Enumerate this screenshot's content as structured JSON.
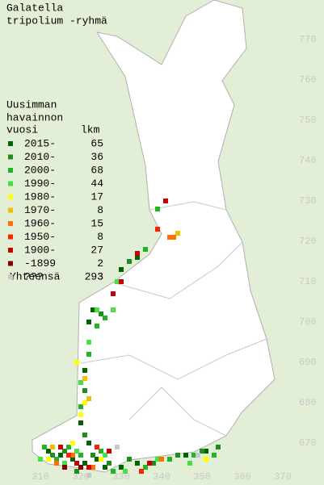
{
  "map": {
    "title": [
      "Galatella",
      "tripolium -ryhmä"
    ],
    "legend_header": [
      "Uusimman",
      "havainnon",
      "vuosi",
      "lkm"
    ],
    "legend": [
      {
        "label": "2015-",
        "count": 65,
        "color": "#006400",
        "squares": [
          [
            312,
            668
          ],
          [
            315,
            667
          ],
          [
            318,
            666
          ],
          [
            321,
            665
          ],
          [
            324,
            666
          ],
          [
            326,
            664
          ],
          [
            330,
            664
          ],
          [
            334,
            665
          ],
          [
            340,
            666
          ],
          [
            346,
            667
          ],
          [
            351,
            668
          ],
          [
            322,
            670
          ],
          [
            320,
            675
          ],
          [
            321,
            688
          ],
          [
            322,
            700
          ],
          [
            323,
            703
          ],
          [
            330,
            713
          ],
          [
            334,
            716
          ]
        ]
      },
      {
        "label": "2010-",
        "count": 36,
        "color": "#1e8c1e",
        "squares": [
          [
            313,
            667
          ],
          [
            316,
            668
          ],
          [
            319,
            663
          ],
          [
            323,
            667
          ],
          [
            327,
            665
          ],
          [
            332,
            666
          ],
          [
            338,
            665
          ],
          [
            344,
            667
          ],
          [
            350,
            668
          ],
          [
            354,
            669
          ],
          [
            321,
            672
          ],
          [
            321,
            683
          ],
          [
            325,
            702
          ],
          [
            332,
            715
          ]
        ]
      },
      {
        "label": "2000-",
        "count": 68,
        "color": "#22b422",
        "squares": [
          [
            311,
            669
          ],
          [
            314,
            666
          ],
          [
            317,
            669
          ],
          [
            320,
            667
          ],
          [
            325,
            668
          ],
          [
            328,
            663
          ],
          [
            336,
            664
          ],
          [
            342,
            666
          ],
          [
            348,
            667
          ],
          [
            353,
            667
          ],
          [
            320,
            679
          ],
          [
            322,
            692
          ],
          [
            324,
            699
          ],
          [
            326,
            701
          ],
          [
            336,
            718
          ],
          [
            339,
            728
          ]
        ]
      },
      {
        "label": "1990-",
        "count": 44,
        "color": "#44e044",
        "squares": [
          [
            310,
            666
          ],
          [
            316,
            665
          ],
          [
            319,
            668
          ],
          [
            326,
            667
          ],
          [
            331,
            663
          ],
          [
            339,
            666
          ],
          [
            347,
            665
          ],
          [
            320,
            685
          ],
          [
            322,
            695
          ],
          [
            324,
            703
          ],
          [
            328,
            703
          ],
          [
            329,
            710
          ]
        ]
      },
      {
        "label": "1980-",
        "count": 17,
        "color": "#ffff00",
        "squares": [
          [
            312,
            666
          ],
          [
            318,
            670
          ],
          [
            320,
            677
          ],
          [
            321,
            680
          ],
          [
            319,
            690
          ],
          [
            325,
            666
          ],
          [
            351,
            666
          ]
        ]
      },
      {
        "label": "1970-",
        "count": 8,
        "color": "#f0c000",
        "squares": [
          [
            313,
            669
          ],
          [
            321,
            686
          ],
          [
            322,
            681
          ],
          [
            344,
            722
          ]
        ]
      },
      {
        "label": "1960-",
        "count": 15,
        "color": "#ff7000",
        "squares": [
          [
            314,
            665
          ],
          [
            318,
            667
          ],
          [
            323,
            664
          ],
          [
            342,
            721
          ],
          [
            343,
            721
          ],
          [
            340,
            666
          ]
        ]
      },
      {
        "label": "1950-",
        "count": 8,
        "color": "#ff2000",
        "squares": [
          [
            317,
            667
          ],
          [
            324,
            669
          ],
          [
            335,
            663
          ],
          [
            339,
            723
          ]
        ]
      },
      {
        "label": "1900-",
        "count": 27,
        "color": "#c80000",
        "squares": [
          [
            315,
            669
          ],
          [
            319,
            665
          ],
          [
            322,
            664
          ],
          [
            327,
            668
          ],
          [
            337,
            665
          ],
          [
            334,
            717
          ],
          [
            330,
            710
          ],
          [
            328,
            707
          ],
          [
            341,
            730
          ]
        ]
      },
      {
        "label": "-1899",
        "count": 2,
        "color": "#800000",
        "squares": [
          [
            316,
            664
          ],
          [
            320,
            664
          ]
        ]
      },
      {
        "label": "???",
        "count": 3,
        "color": "#c8c8c8",
        "squares": [
          [
            322,
            662
          ],
          [
            329,
            669
          ],
          [
            349,
            667
          ]
        ]
      }
    ],
    "total_label": "Yhteensä",
    "total": 293,
    "xticks": [
      310,
      320,
      330,
      340,
      350,
      360,
      370
    ],
    "yticks": [
      670,
      680,
      690,
      700,
      710,
      720,
      730,
      740,
      750,
      760,
      770
    ]
  }
}
